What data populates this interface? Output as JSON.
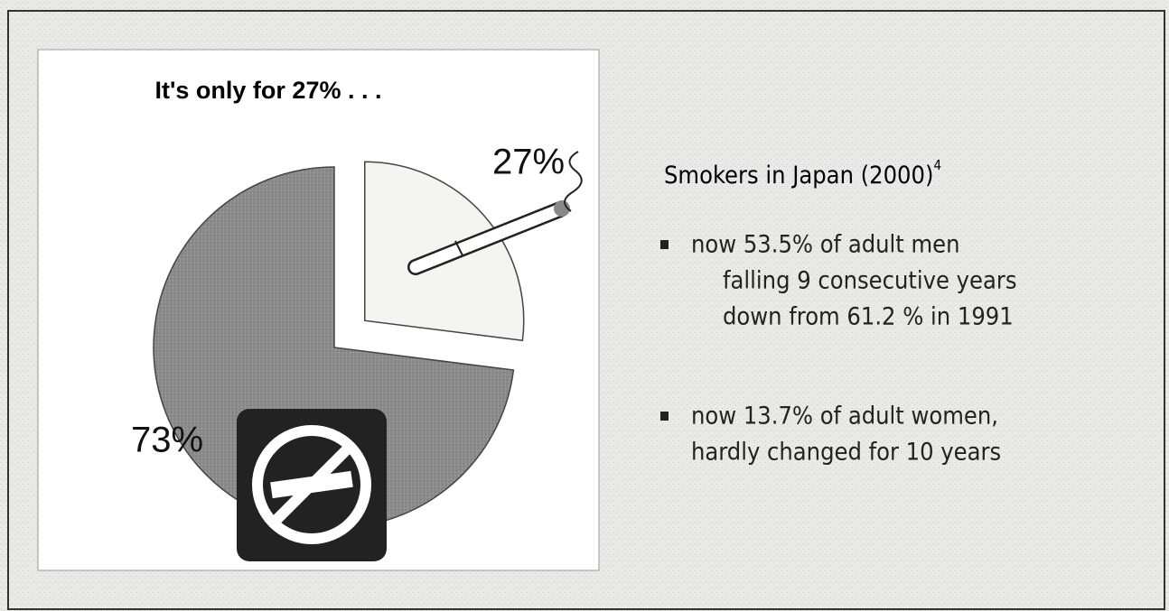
{
  "chart_data": {
    "type": "pie",
    "title": "It's only for 27% . . .",
    "values": [
      27,
      73
    ],
    "value_labels": [
      "27%",
      "73%"
    ],
    "colors": [
      "#f4f4f2",
      "#8c8c8c"
    ],
    "explode": [
      true,
      false
    ]
  },
  "panel": {
    "heading": "Smokers in Japan (2000)",
    "footnote": "4",
    "bullets": [
      [
        "now 53.5% of adult men",
        "falling 9 consecutive years",
        "down from 61.2 % in 1991"
      ],
      [
        "now 13.7% of adult women,",
        "hardly changed for 10 years"
      ]
    ]
  }
}
